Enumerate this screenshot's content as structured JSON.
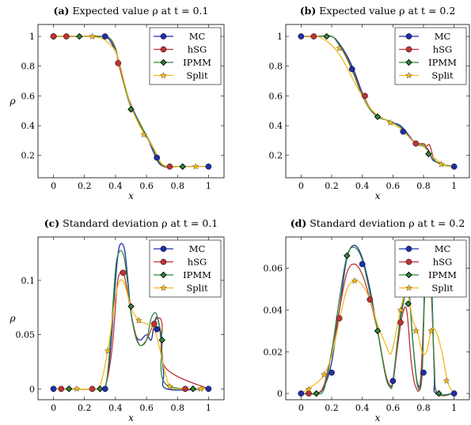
{
  "series_styles": [
    {
      "name": "MC",
      "color": "#1f2fa8",
      "marker": "circle"
    },
    {
      "name": "hSG",
      "color": "#c03236",
      "marker": "circle"
    },
    {
      "name": "IPMM",
      "color": "#2e8b3c",
      "marker": "diamond"
    },
    {
      "name": "Split",
      "color": "#f4b81e",
      "marker": "star"
    }
  ],
  "chart_data": [
    {
      "type": "line",
      "panel_tag": "(a)",
      "title": "Expected value ρ at t = 0.1",
      "xlabel": "x",
      "ylabel": "ρ",
      "xlim": [
        -0.1,
        1.1
      ],
      "ylim": [
        0.05,
        1.08
      ],
      "xticks": [
        0,
        0.2,
        0.4,
        0.6,
        0.8,
        1
      ],
      "xtick_labels": [
        "0",
        "0.2",
        "0.4",
        "0.6",
        "0.8",
        "1"
      ],
      "yticks": [
        0.2,
        0.4,
        0.6,
        0.8,
        1
      ],
      "ytick_labels": [
        "0.2",
        "0.4",
        "0.6",
        "0.8",
        "1"
      ],
      "legend": "top-right",
      "series": [
        {
          "name": "MC",
          "x": [
            0,
            0.1,
            0.2,
            0.3,
            0.35,
            0.4,
            0.43,
            0.46,
            0.5,
            0.55,
            0.6,
            0.63,
            0.66,
            0.7,
            0.8,
            0.9,
            1
          ],
          "y": [
            1,
            1,
            1,
            1,
            0.99,
            0.9,
            0.8,
            0.67,
            0.54,
            0.43,
            0.33,
            0.26,
            0.19,
            0.13,
            0.125,
            0.125,
            0.125
          ],
          "markers_x": [
            0,
            0.333,
            0.667,
            1
          ],
          "markers_y": [
            1,
            1,
            0.185,
            0.125
          ]
        },
        {
          "name": "hSG",
          "x": [
            0,
            0.1,
            0.2,
            0.3,
            0.36,
            0.4,
            0.42,
            0.46,
            0.5,
            0.55,
            0.6,
            0.65,
            0.68,
            0.71,
            0.8,
            0.9,
            1
          ],
          "y": [
            1,
            1,
            1,
            1,
            0.99,
            0.92,
            0.82,
            0.66,
            0.53,
            0.42,
            0.33,
            0.24,
            0.17,
            0.125,
            0.125,
            0.125,
            0.125
          ],
          "markers_x": [
            0,
            0.083,
            0.417,
            0.75
          ],
          "markers_y": [
            1,
            1,
            0.82,
            0.125
          ]
        },
        {
          "name": "IPMM",
          "x": [
            0,
            0.1,
            0.2,
            0.3,
            0.36,
            0.4,
            0.43,
            0.46,
            0.5,
            0.55,
            0.6,
            0.65,
            0.68,
            0.72,
            0.8,
            0.9,
            1
          ],
          "y": [
            1,
            1,
            1,
            1,
            0.99,
            0.91,
            0.8,
            0.66,
            0.52,
            0.43,
            0.33,
            0.23,
            0.16,
            0.125,
            0.125,
            0.125,
            0.125
          ],
          "markers_x": [
            0.167,
            0.5,
            0.833
          ],
          "markers_y": [
            1,
            0.51,
            0.125
          ]
        },
        {
          "name": "Split",
          "x": [
            0,
            0.1,
            0.2,
            0.3,
            0.35,
            0.4,
            0.43,
            0.47,
            0.5,
            0.55,
            0.6,
            0.65,
            0.68,
            0.72,
            0.8,
            0.9,
            1
          ],
          "y": [
            1,
            1,
            1,
            0.99,
            0.96,
            0.9,
            0.8,
            0.64,
            0.53,
            0.41,
            0.32,
            0.24,
            0.17,
            0.13,
            0.125,
            0.125,
            0.125
          ],
          "markers_x": [
            0.25,
            0.583,
            0.917
          ],
          "markers_y": [
            1,
            0.34,
            0.125
          ]
        }
      ]
    },
    {
      "type": "line",
      "panel_tag": "(b)",
      "title": "Expected value ρ at t = 0.2",
      "xlabel": "x",
      "ylabel": "",
      "xlim": [
        -0.1,
        1.1
      ],
      "ylim": [
        0.05,
        1.08
      ],
      "xticks": [
        0,
        0.2,
        0.4,
        0.6,
        0.8,
        1
      ],
      "xtick_labels": [
        "0",
        "0.2",
        "0.4",
        "0.6",
        "0.8",
        "1"
      ],
      "yticks": [
        0.2,
        0.4,
        0.6,
        0.8,
        1
      ],
      "ytick_labels": [
        "0.2",
        "0.4",
        "0.6",
        "0.8",
        "1"
      ],
      "legend": "top-right",
      "series": [
        {
          "name": "MC",
          "x": [
            0,
            0.1,
            0.2,
            0.25,
            0.3,
            0.35,
            0.4,
            0.45,
            0.5,
            0.55,
            0.6,
            0.65,
            0.7,
            0.75,
            0.8,
            0.83,
            0.86,
            0.9,
            0.95,
            1
          ],
          "y": [
            1,
            1,
            1,
            0.95,
            0.87,
            0.76,
            0.62,
            0.52,
            0.46,
            0.44,
            0.42,
            0.4,
            0.34,
            0.28,
            0.26,
            0.24,
            0.17,
            0.15,
            0.13,
            0.125
          ],
          "markers_x": [
            0,
            0.333,
            0.667,
            1
          ],
          "markers_y": [
            1,
            0.78,
            0.36,
            0.125
          ]
        },
        {
          "name": "hSG",
          "x": [
            0,
            0.1,
            0.2,
            0.25,
            0.3,
            0.35,
            0.4,
            0.45,
            0.5,
            0.55,
            0.6,
            0.65,
            0.7,
            0.75,
            0.8,
            0.82,
            0.84,
            0.87,
            0.9,
            0.95,
            1
          ],
          "y": [
            1,
            1,
            1,
            0.94,
            0.86,
            0.74,
            0.61,
            0.52,
            0.46,
            0.44,
            0.42,
            0.39,
            0.33,
            0.28,
            0.28,
            0.26,
            0.27,
            0.17,
            0.15,
            0.13,
            0.125
          ],
          "markers_x": [
            0.083,
            0.417,
            0.75
          ],
          "markers_y": [
            1,
            0.6,
            0.28
          ]
        },
        {
          "name": "IPMM",
          "x": [
            0,
            0.1,
            0.2,
            0.25,
            0.3,
            0.35,
            0.4,
            0.45,
            0.5,
            0.55,
            0.6,
            0.65,
            0.7,
            0.75,
            0.8,
            0.83,
            0.85,
            0.88,
            0.92,
            1
          ],
          "y": [
            1,
            1,
            1,
            0.94,
            0.85,
            0.73,
            0.6,
            0.51,
            0.46,
            0.44,
            0.42,
            0.39,
            0.33,
            0.28,
            0.27,
            0.22,
            0.2,
            0.16,
            0.14,
            0.125
          ],
          "markers_x": [
            0.167,
            0.5,
            0.833
          ],
          "markers_y": [
            1,
            0.46,
            0.21
          ]
        },
        {
          "name": "Split",
          "x": [
            0,
            0.1,
            0.15,
            0.2,
            0.25,
            0.3,
            0.35,
            0.4,
            0.45,
            0.5,
            0.55,
            0.6,
            0.65,
            0.7,
            0.75,
            0.8,
            0.85,
            0.9,
            0.95,
            1
          ],
          "y": [
            1,
            1,
            0.98,
            0.94,
            0.88,
            0.79,
            0.69,
            0.6,
            0.52,
            0.47,
            0.44,
            0.41,
            0.38,
            0.33,
            0.28,
            0.26,
            0.2,
            0.16,
            0.13,
            0.125
          ],
          "markers_x": [
            0.25,
            0.583,
            0.917
          ],
          "markers_y": [
            0.92,
            0.42,
            0.14
          ]
        }
      ]
    },
    {
      "type": "line",
      "panel_tag": "(c)",
      "title": "Standard deviation ρ at t = 0.1",
      "xlabel": "x",
      "ylabel": "ρ",
      "xlim": [
        -0.1,
        1.1
      ],
      "ylim": [
        -0.01,
        0.14
      ],
      "xticks": [
        0,
        0.2,
        0.4,
        0.6,
        0.8,
        1
      ],
      "xtick_labels": [
        "0",
        "0.2",
        "0.4",
        "0.6",
        "0.8",
        "1"
      ],
      "yticks": [
        0,
        0.05,
        0.1
      ],
      "ytick_labels": [
        "0",
        "0.05",
        "0.1"
      ],
      "legend": "top-right",
      "series": [
        {
          "name": "MC",
          "x": [
            0,
            0.3,
            0.34,
            0.37,
            0.4,
            0.42,
            0.44,
            0.46,
            0.48,
            0.5,
            0.53,
            0.56,
            0.6,
            0.63,
            0.65,
            0.67,
            0.69,
            0.71,
            0.73,
            1
          ],
          "y": [
            0,
            0,
            0.005,
            0.04,
            0.1,
            0.128,
            0.134,
            0.127,
            0.1,
            0.07,
            0.05,
            0.045,
            0.05,
            0.045,
            0.06,
            0.066,
            0.05,
            0.015,
            0,
            0
          ],
          "markers_x": [
            0,
            0.333,
            0.667,
            1
          ],
          "markers_y": [
            0,
            0,
            0.055,
            0
          ]
        },
        {
          "name": "hSG",
          "x": [
            0,
            0.3,
            0.34,
            0.38,
            0.41,
            0.43,
            0.45,
            0.47,
            0.5,
            0.53,
            0.56,
            0.6,
            0.63,
            0.65,
            0.67,
            0.7,
            0.72,
            1
          ],
          "y": [
            0,
            0,
            0.005,
            0.04,
            0.095,
            0.107,
            0.108,
            0.095,
            0.07,
            0.05,
            0.04,
            0.045,
            0.055,
            0.06,
            0.065,
            0.06,
            0.02,
            0
          ],
          "markers_x": [
            0.05,
            0.25,
            0.45,
            0.65,
            0.85
          ],
          "markers_y": [
            0,
            0,
            0.107,
            0.06,
            0
          ]
        },
        {
          "name": "IPMM",
          "x": [
            0,
            0.3,
            0.34,
            0.37,
            0.4,
            0.42,
            0.44,
            0.46,
            0.48,
            0.5,
            0.53,
            0.56,
            0.6,
            0.63,
            0.66,
            0.68,
            0.7,
            0.72,
            1
          ],
          "y": [
            0,
            0,
            0.005,
            0.05,
            0.11,
            0.125,
            0.127,
            0.118,
            0.095,
            0.07,
            0.048,
            0.04,
            0.045,
            0.065,
            0.07,
            0.06,
            0.045,
            0.005,
            0
          ],
          "markers_x": [
            0.1,
            0.3,
            0.5,
            0.7,
            0.9
          ],
          "markers_y": [
            0,
            0,
            0.076,
            0.045,
            0
          ]
        },
        {
          "name": "Split",
          "x": [
            0,
            0.25,
            0.3,
            0.35,
            0.4,
            0.43,
            0.46,
            0.5,
            0.55,
            0.6,
            0.65,
            0.68,
            0.72,
            0.75,
            0.8,
            1
          ],
          "y": [
            0,
            0,
            0.003,
            0.035,
            0.085,
            0.1,
            0.096,
            0.075,
            0.063,
            0.06,
            0.055,
            0.04,
            0.015,
            0.002,
            0,
            0
          ],
          "markers_x": [
            0.15,
            0.35,
            0.55,
            0.75,
            0.95
          ],
          "markers_y": [
            0,
            0.035,
            0.063,
            0.002,
            0
          ]
        }
      ]
    },
    {
      "type": "line",
      "panel_tag": "(d)",
      "title": "Standard deviation ρ at t = 0.2",
      "xlabel": "x",
      "ylabel": "",
      "xlim": [
        -0.1,
        1.1
      ],
      "ylim": [
        -0.003,
        0.075
      ],
      "xticks": [
        0,
        0.2,
        0.4,
        0.6,
        0.8,
        1
      ],
      "xtick_labels": [
        "0",
        "0.2",
        "0.4",
        "0.6",
        "0.8",
        "1"
      ],
      "yticks": [
        0,
        0.02,
        0.04,
        0.06
      ],
      "ytick_labels": [
        "0",
        "0.02",
        "0.04",
        "0.06"
      ],
      "legend": "top-right",
      "series": [
        {
          "name": "MC",
          "x": [
            0,
            0.1,
            0.15,
            0.2,
            0.25,
            0.3,
            0.35,
            0.4,
            0.45,
            0.5,
            0.55,
            0.58,
            0.6,
            0.63,
            0.66,
            0.7,
            0.73,
            0.76,
            0.79,
            0.81,
            0.83,
            0.85,
            0.87,
            0.88,
            1
          ],
          "y": [
            0,
            0,
            0.003,
            0.015,
            0.04,
            0.065,
            0.071,
            0.065,
            0.05,
            0.03,
            0.01,
            0.004,
            0.006,
            0.025,
            0.042,
            0.052,
            0.025,
            0.005,
            0.01,
            0.06,
            0.07,
            0.06,
            0.01,
            0,
            0
          ],
          "markers_x": [
            0,
            0.2,
            0.4,
            0.6,
            0.8,
            1
          ],
          "markers_y": [
            0,
            0.01,
            0.062,
            0.006,
            0.01,
            0
          ]
        },
        {
          "name": "hSG",
          "x": [
            0,
            0.1,
            0.15,
            0.2,
            0.25,
            0.3,
            0.35,
            0.4,
            0.45,
            0.5,
            0.55,
            0.58,
            0.6,
            0.63,
            0.66,
            0.69,
            0.72,
            0.75,
            0.78,
            0.81,
            0.83,
            0.85,
            0.87,
            0.89,
            1
          ],
          "y": [
            0,
            0,
            0.004,
            0.02,
            0.04,
            0.058,
            0.062,
            0.057,
            0.045,
            0.03,
            0.01,
            0.004,
            0.005,
            0.022,
            0.037,
            0.04,
            0.015,
            0.003,
            0.006,
            0.05,
            0.062,
            0.05,
            0.015,
            0,
            0
          ],
          "markers_x": [
            0.05,
            0.25,
            0.45,
            0.65,
            0.85
          ],
          "markers_y": [
            0,
            0.036,
            0.045,
            0.034,
            0.05
          ]
        },
        {
          "name": "IPMM",
          "x": [
            0,
            0.1,
            0.15,
            0.2,
            0.25,
            0.3,
            0.35,
            0.4,
            0.45,
            0.5,
            0.55,
            0.58,
            0.6,
            0.63,
            0.66,
            0.7,
            0.73,
            0.76,
            0.79,
            0.81,
            0.83,
            0.85,
            0.87,
            0.89,
            1
          ],
          "y": [
            0,
            0,
            0.002,
            0.02,
            0.045,
            0.066,
            0.07,
            0.064,
            0.048,
            0.03,
            0.009,
            0.003,
            0.005,
            0.025,
            0.04,
            0.05,
            0.025,
            0.004,
            0.008,
            0.055,
            0.066,
            0.055,
            0.012,
            0,
            0
          ],
          "markers_x": [
            0.1,
            0.3,
            0.5,
            0.7,
            0.9
          ],
          "markers_y": [
            0,
            0.066,
            0.03,
            0.043,
            0
          ]
        },
        {
          "name": "Split",
          "x": [
            0,
            0.1,
            0.15,
            0.2,
            0.25,
            0.3,
            0.35,
            0.4,
            0.45,
            0.5,
            0.55,
            0.58,
            0.6,
            0.63,
            0.67,
            0.7,
            0.73,
            0.76,
            0.79,
            0.82,
            0.85,
            0.88,
            0.92,
            0.96,
            1
          ],
          "y": [
            0,
            0.005,
            0.009,
            0.018,
            0.035,
            0.05,
            0.054,
            0.052,
            0.045,
            0.033,
            0.024,
            0.019,
            0.022,
            0.033,
            0.046,
            0.047,
            0.035,
            0.03,
            0.02,
            0.02,
            0.03,
            0.03,
            0.02,
            0.005,
            0
          ],
          "markers_x": [
            0.05,
            0.15,
            0.35,
            0.65,
            0.75,
            0.85,
            0.95
          ],
          "markers_y": [
            0.002,
            0.009,
            0.054,
            0.04,
            0.03,
            0.03,
            0.006
          ]
        }
      ]
    }
  ]
}
